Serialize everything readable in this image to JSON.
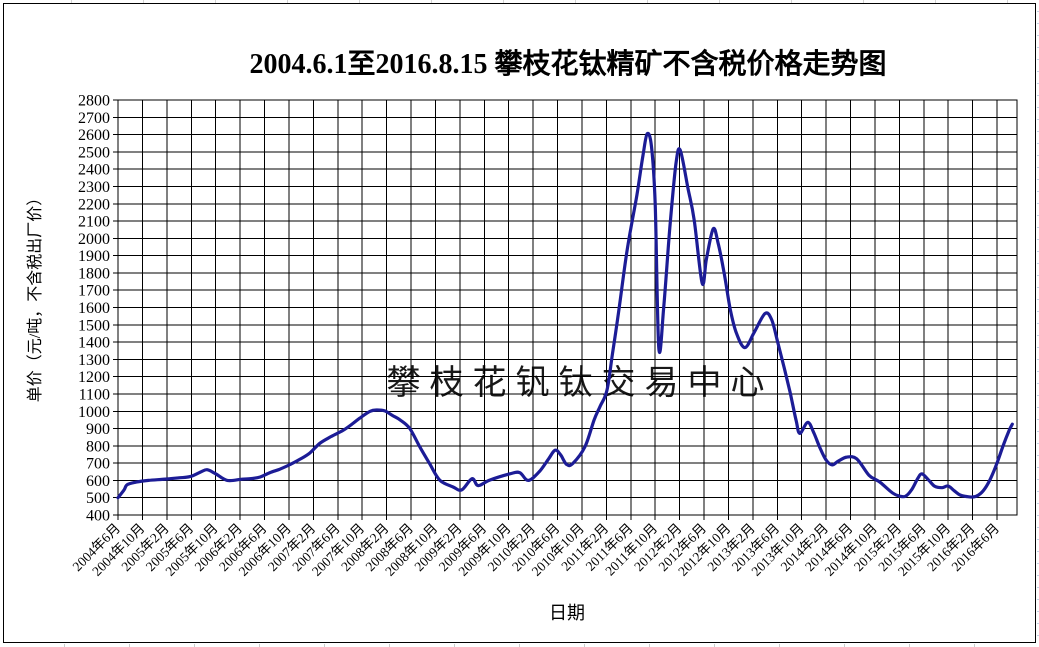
{
  "chart_data": {
    "type": "line",
    "title": "2004.6.1至2016.8.15  攀枝花钛精矿不含税价格走势图",
    "xlabel": "日期",
    "ylabel": "单价（元/吨，不含税出厂价）",
    "watermark": "攀枝花钒钛交易中心",
    "ylim": [
      400,
      2800
    ],
    "ytick_step": 100,
    "grid": true,
    "legend_position": "none",
    "line_color": "#1c1c96",
    "watermark_color": "#4fb2e8",
    "grid_color": "#000000",
    "frame_color": "#000000",
    "x_tick_labels": [
      "2004年6月",
      "2004年10月",
      "2005年2月",
      "2005年6月",
      "2005年10月",
      "2006年2月",
      "2006年6月",
      "2006年10月",
      "2007年2月",
      "2007年6月",
      "2007年10月",
      "2008年2月",
      "2008年6月",
      "2008年10月",
      "2009年2月",
      "2009年6月",
      "2009年10月",
      "2010年2月",
      "2010年6月",
      "2010年10月",
      "2011年2月",
      "2011年6月",
      "2011年10月",
      "2012年2月",
      "2012年6月",
      "2012年10月",
      "2013年2月",
      "2013年6月",
      "2013年10月",
      "2014年2月",
      "2014年6月",
      "2014年10月",
      "2015年2月",
      "2015年6月",
      "2015年10月",
      "2016年2月",
      "2016年6月"
    ],
    "months_per_tick": 4,
    "x_start": "2004-06",
    "x_end": "2016-08-15",
    "series": [
      {
        "points_month_value": [
          [
            0,
            500
          ],
          [
            1,
            545
          ],
          [
            1.5,
            575
          ],
          [
            3,
            590
          ],
          [
            5,
            600
          ],
          [
            8,
            608
          ],
          [
            10,
            615
          ],
          [
            11.8,
            622
          ],
          [
            13.5,
            648
          ],
          [
            14.6,
            662
          ],
          [
            16,
            638
          ],
          [
            17.9,
            600
          ],
          [
            20.3,
            607
          ],
          [
            22,
            611
          ],
          [
            23.3,
            620
          ],
          [
            24.9,
            645
          ],
          [
            26.5,
            665
          ],
          [
            28.2,
            692
          ],
          [
            29.8,
            722
          ],
          [
            31.4,
            758
          ],
          [
            33.1,
            815
          ],
          [
            35,
            855
          ],
          [
            36.9,
            890
          ],
          [
            38.5,
            930
          ],
          [
            39.6,
            960
          ],
          [
            41.3,
            1000
          ],
          [
            42.5,
            1007
          ],
          [
            43.7,
            1002
          ],
          [
            45,
            975
          ],
          [
            46.2,
            950
          ],
          [
            47.8,
            900
          ],
          [
            49.5,
            790
          ],
          [
            51,
            700
          ],
          [
            52.7,
            602
          ],
          [
            54.9,
            562
          ],
          [
            56.3,
            545
          ],
          [
            58,
            610
          ],
          [
            59,
            570
          ],
          [
            60.9,
            602
          ],
          [
            64.2,
            638
          ],
          [
            65.8,
            645
          ],
          [
            67.2,
            600
          ],
          [
            69,
            650
          ],
          [
            70.5,
            722
          ],
          [
            71.6,
            775
          ],
          [
            72.5,
            748
          ],
          [
            73.5,
            692
          ],
          [
            74.5,
            698
          ],
          [
            76.5,
            795
          ],
          [
            78,
            950
          ],
          [
            79,
            1030
          ],
          [
            80.1,
            1120
          ],
          [
            81,
            1330
          ],
          [
            82,
            1570
          ],
          [
            83.4,
            1930
          ],
          [
            85,
            2250
          ],
          [
            86,
            2480
          ],
          [
            86.7,
            2605
          ],
          [
            87.4,
            2530
          ],
          [
            88,
            2200
          ],
          [
            88.6,
            1365
          ],
          [
            89.4,
            1600
          ],
          [
            90.4,
            2060
          ],
          [
            91.4,
            2430
          ],
          [
            92.1,
            2510
          ],
          [
            93.4,
            2285
          ],
          [
            94.4,
            2105
          ],
          [
            95.7,
            1740
          ],
          [
            96.4,
            1880
          ],
          [
            97.5,
            2055
          ],
          [
            98.3,
            1975
          ],
          [
            99.3,
            1800
          ],
          [
            100.3,
            1590
          ],
          [
            101.3,
            1452
          ],
          [
            102.7,
            1368
          ],
          [
            104.2,
            1455
          ],
          [
            106,
            1565
          ],
          [
            107.1,
            1528
          ],
          [
            108.1,
            1395
          ],
          [
            109.1,
            1256
          ],
          [
            110.1,
            1110
          ],
          [
            111.1,
            945
          ],
          [
            111.7,
            872
          ],
          [
            113,
            936
          ],
          [
            114,
            874
          ],
          [
            115,
            788
          ],
          [
            116,
            718
          ],
          [
            117,
            690
          ],
          [
            118,
            712
          ],
          [
            119.4,
            735
          ],
          [
            121,
            725
          ],
          [
            123,
            631
          ],
          [
            124.3,
            602
          ],
          [
            125,
            585
          ],
          [
            126.9,
            527
          ],
          [
            128,
            510
          ],
          [
            129,
            508
          ],
          [
            130,
            545
          ],
          [
            131,
            610
          ],
          [
            131.7,
            638
          ],
          [
            132.8,
            602
          ],
          [
            133.8,
            566
          ],
          [
            135,
            558
          ],
          [
            136,
            568
          ],
          [
            137,
            540
          ],
          [
            138,
            515
          ],
          [
            139,
            507
          ],
          [
            140,
            504
          ],
          [
            141,
            516
          ],
          [
            142,
            552
          ],
          [
            143,
            615
          ],
          [
            144,
            700
          ],
          [
            145,
            800
          ],
          [
            146,
            890
          ],
          [
            146.5,
            925
          ]
        ]
      }
    ]
  }
}
